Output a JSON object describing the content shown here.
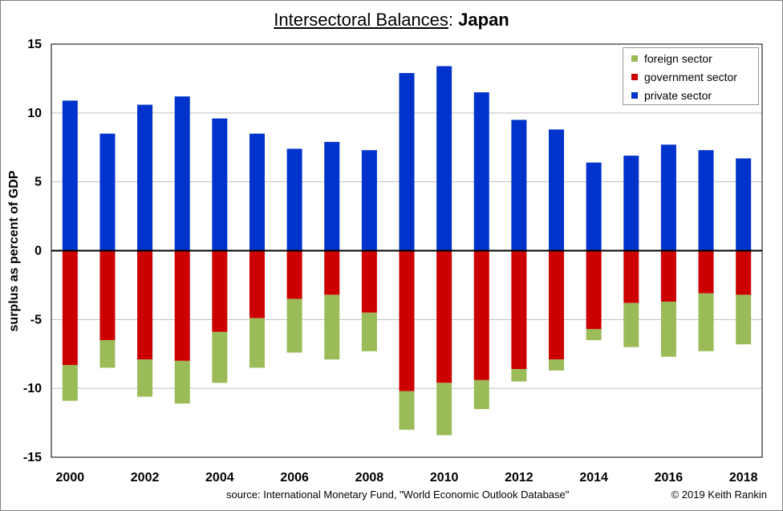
{
  "header": {
    "title_main": "Intersectoral Balances",
    "title_sep": ": ",
    "title_country": "Japan"
  },
  "footer": {
    "source": "source:  International Monetary Fund, \"World Economic Outlook Database\"",
    "copyright": "© 2019 Keith Rankin"
  },
  "chart_data": {
    "type": "bar",
    "stacked": "diverging",
    "ylabel": "surplus as percent of GDP",
    "ylim": [
      -15,
      15
    ],
    "yticks": [
      15,
      10,
      5,
      0,
      -5,
      -10,
      -15
    ],
    "categories": [
      "2000",
      "2001",
      "2002",
      "2003",
      "2004",
      "2005",
      "2006",
      "2007",
      "2008",
      "2009",
      "2010",
      "2011",
      "2012",
      "2013",
      "2014",
      "2015",
      "2016",
      "2017",
      "2018"
    ],
    "xtick_labels": [
      "2000",
      "",
      "2002",
      "",
      "2004",
      "",
      "2006",
      "",
      "2008",
      "",
      "2010",
      "",
      "2012",
      "",
      "2014",
      "",
      "2016",
      "",
      "2018"
    ],
    "grid": true,
    "legend_position": "top-right",
    "series": [
      {
        "name": "foreign sector",
        "color": "#9bbb59",
        "values": [
          -2.6,
          -2.0,
          -2.7,
          -3.1,
          -3.7,
          -3.6,
          -3.9,
          -4.7,
          -2.8,
          -2.8,
          -3.8,
          -2.1,
          -0.9,
          -0.8,
          -0.8,
          -3.2,
          -4.0,
          -4.2,
          -3.6
        ]
      },
      {
        "name": "government sector",
        "color": "#cc0000",
        "values": [
          -8.3,
          -6.5,
          -7.9,
          -8.0,
          -5.9,
          -4.9,
          -3.5,
          -3.2,
          -4.5,
          -10.2,
          -9.6,
          -9.4,
          -8.6,
          -7.9,
          -5.7,
          -3.8,
          -3.7,
          -3.1,
          -3.2
        ]
      },
      {
        "name": "private sector",
        "color": "#0033cc",
        "values": [
          10.9,
          8.5,
          10.6,
          11.2,
          9.6,
          8.5,
          7.4,
          7.9,
          7.3,
          12.9,
          13.4,
          11.5,
          9.5,
          8.8,
          6.4,
          6.9,
          7.7,
          7.3,
          6.7
        ]
      }
    ]
  }
}
